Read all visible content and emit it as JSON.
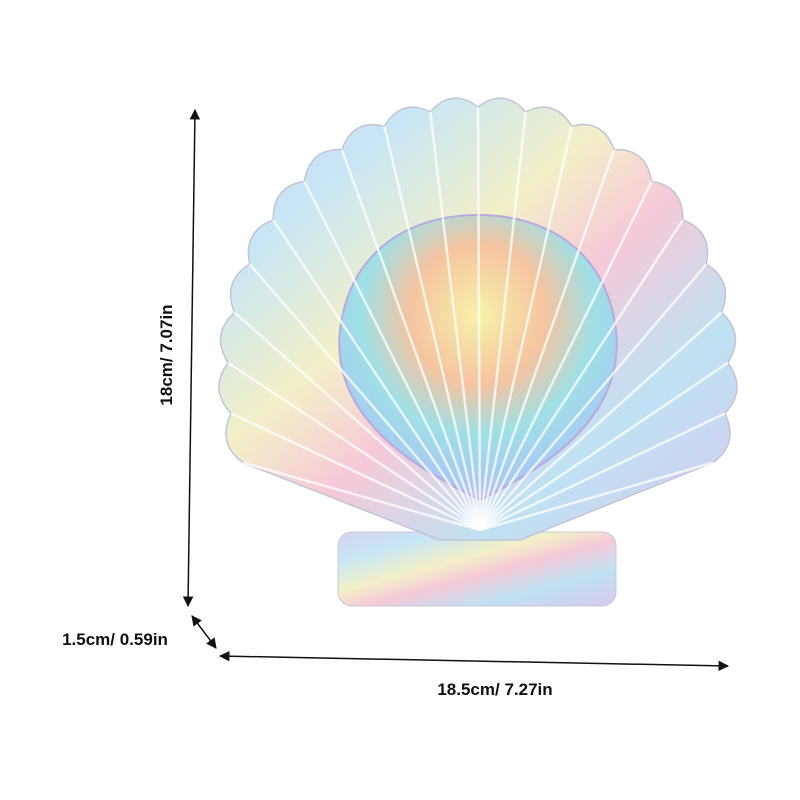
{
  "dimensions": {
    "height": "18cm/ 7.07in",
    "depth": "1.5cm/ 0.59in",
    "width": "18.5cm/ 7.27in"
  }
}
